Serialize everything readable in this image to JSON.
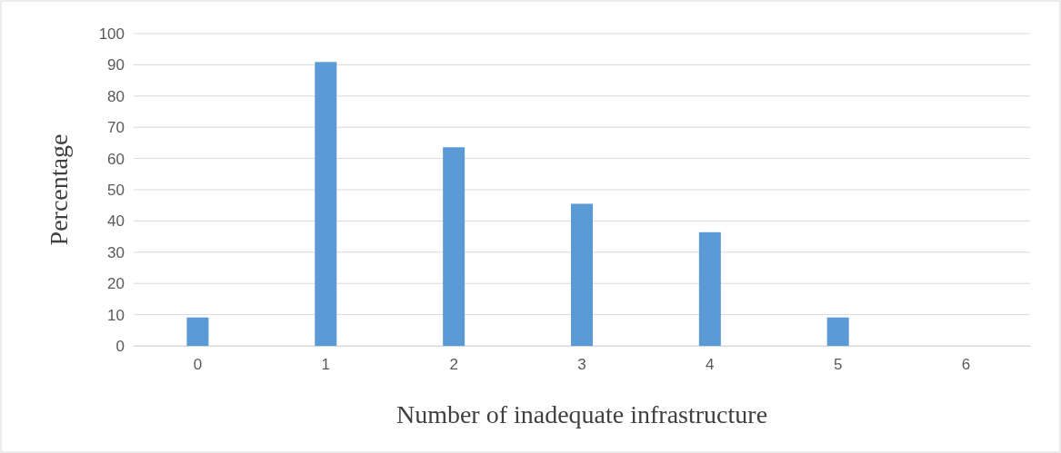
{
  "chart_data": {
    "type": "bar",
    "xlabel": "Number of inadequate infrastructure",
    "ylabel": "Percentage",
    "categories": [
      "0",
      "1",
      "2",
      "3",
      "4",
      "5",
      "6"
    ],
    "values": [
      9.1,
      90.9,
      63.6,
      45.5,
      36.4,
      9.1,
      0
    ],
    "color": "#5b9bd5",
    "ylim": [
      0,
      100
    ],
    "yticks": [
      0,
      10,
      20,
      30,
      40,
      50,
      60,
      70,
      80,
      90,
      100
    ],
    "grid": "y"
  }
}
